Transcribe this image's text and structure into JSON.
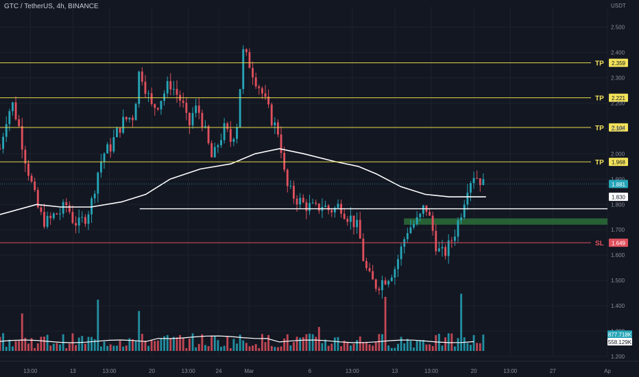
{
  "header": {
    "title": "GTC / TetherUS, 4h, BINANCE"
  },
  "axis": {
    "currency": "USDT"
  },
  "colors": {
    "background": "#131722",
    "up": "#26a5b7",
    "down": "#e0505d",
    "level_line": "#e6d94a",
    "sl_line": "#e0505d",
    "ma_line": "#ffffff",
    "support_line": "#ffffff",
    "zone": "#2f7a3c",
    "vol_up": "#26a5b7",
    "vol_down": "#e0505d",
    "axis_text": "#8b8f9a"
  },
  "chart_data": {
    "type": "candlestick",
    "title": "GTC / TetherUS, 4h, BINANCE",
    "ylabel": "USDT",
    "ylim": [
      1.2,
      2.58
    ],
    "y_ticks": [
      "2.500",
      "2.400",
      "2.300",
      "2.200",
      "2.100",
      "2.000",
      "1.900",
      "1.800",
      "1.700",
      "1.600",
      "1.500",
      "1.400",
      "1.300",
      "1.200"
    ],
    "x_ticks": [
      {
        "label": "13:00",
        "t": 0.05
      },
      {
        "label": "13",
        "t": 0.12
      },
      {
        "label": "13:00",
        "t": 0.18
      },
      {
        "label": "20",
        "t": 0.25
      },
      {
        "label": "13:00",
        "t": 0.31
      },
      {
        "label": "24",
        "t": 0.36
      },
      {
        "label": "Mar",
        "t": 0.41
      },
      {
        "label": "6",
        "t": 0.51
      },
      {
        "label": "13:00",
        "t": 0.58
      },
      {
        "label": "13",
        "t": 0.65
      },
      {
        "label": "13:00",
        "t": 0.71
      },
      {
        "label": "20",
        "t": 0.78
      },
      {
        "label": "13:00",
        "t": 0.84
      },
      {
        "label": "27",
        "t": 0.91
      },
      {
        "label": "Ap",
        "t": 1.0
      }
    ],
    "levels": [
      {
        "name": "TP",
        "value": 2.359,
        "label": "2.359",
        "kind": "tp"
      },
      {
        "name": "TP",
        "value": 2.221,
        "label": "2.221",
        "kind": "tp"
      },
      {
        "name": "TP",
        "value": 2.104,
        "label": "2.104",
        "kind": "tp"
      },
      {
        "name": "TP",
        "value": 1.968,
        "label": "1.968",
        "kind": "tp"
      },
      {
        "name": "SL",
        "value": 1.649,
        "label": "1.649",
        "kind": "sl"
      }
    ],
    "price_labels": [
      {
        "value": 1.881,
        "label": "1.881",
        "kind": "current"
      },
      {
        "value": 1.83,
        "label": "1.830",
        "kind": "ma"
      }
    ],
    "support_line": {
      "value": 1.783,
      "t_start": 0.23,
      "t_end": 1.0
    },
    "demand_zone": {
      "low": 1.72,
      "high": 1.745,
      "t_start": 0.665,
      "t_end": 1.0
    },
    "volume": {
      "labels": [
        "877.718K",
        "558.129K"
      ]
    },
    "series": [
      {
        "kind": "price",
        "points": [
          [
            0.0,
            2.02
          ],
          [
            0.01,
            2.14
          ],
          [
            0.02,
            2.2
          ],
          [
            0.03,
            2.12
          ],
          [
            0.04,
            2.0
          ],
          [
            0.05,
            1.9
          ],
          [
            0.06,
            1.8
          ],
          [
            0.07,
            1.74
          ],
          [
            0.08,
            1.73
          ],
          [
            0.09,
            1.76
          ],
          [
            0.1,
            1.77
          ],
          [
            0.11,
            1.8
          ],
          [
            0.12,
            1.74
          ],
          [
            0.13,
            1.72
          ],
          [
            0.14,
            1.75
          ],
          [
            0.15,
            1.8
          ],
          [
            0.16,
            1.92
          ],
          [
            0.17,
            2.0
          ],
          [
            0.18,
            2.02
          ],
          [
            0.19,
            2.07
          ],
          [
            0.2,
            2.12
          ],
          [
            0.21,
            2.14
          ],
          [
            0.22,
            2.15
          ],
          [
            0.23,
            2.34
          ],
          [
            0.24,
            2.26
          ],
          [
            0.25,
            2.18
          ],
          [
            0.26,
            2.2
          ],
          [
            0.27,
            2.24
          ],
          [
            0.28,
            2.28
          ],
          [
            0.29,
            2.24
          ],
          [
            0.3,
            2.2
          ],
          [
            0.31,
            2.1
          ],
          [
            0.32,
            2.18
          ],
          [
            0.33,
            2.16
          ],
          [
            0.34,
            2.06
          ],
          [
            0.35,
            1.97
          ],
          [
            0.36,
            2.05
          ],
          [
            0.37,
            2.1
          ],
          [
            0.38,
            2.05
          ],
          [
            0.39,
            2.12
          ],
          [
            0.4,
            2.4
          ],
          [
            0.41,
            2.36
          ],
          [
            0.42,
            2.3
          ],
          [
            0.43,
            2.25
          ],
          [
            0.44,
            2.18
          ],
          [
            0.45,
            2.12
          ],
          [
            0.46,
            2.08
          ],
          [
            0.47,
            1.88
          ],
          [
            0.48,
            1.84
          ],
          [
            0.49,
            1.82
          ],
          [
            0.5,
            1.8
          ],
          [
            0.51,
            1.79
          ],
          [
            0.52,
            1.78
          ],
          [
            0.53,
            1.8
          ],
          [
            0.54,
            1.78
          ],
          [
            0.55,
            1.78
          ],
          [
            0.56,
            1.8
          ],
          [
            0.57,
            1.76
          ],
          [
            0.58,
            1.74
          ],
          [
            0.59,
            1.7
          ],
          [
            0.6,
            1.56
          ],
          [
            0.61,
            1.5
          ],
          [
            0.62,
            1.48
          ],
          [
            0.63,
            1.5
          ],
          [
            0.64,
            1.52
          ],
          [
            0.65,
            1.55
          ],
          [
            0.66,
            1.62
          ],
          [
            0.67,
            1.7
          ],
          [
            0.68,
            1.72
          ],
          [
            0.69,
            1.74
          ],
          [
            0.7,
            1.8
          ],
          [
            0.71,
            1.72
          ],
          [
            0.72,
            1.62
          ],
          [
            0.73,
            1.6
          ],
          [
            0.74,
            1.64
          ],
          [
            0.75,
            1.7
          ],
          [
            0.76,
            1.78
          ],
          [
            0.77,
            1.88
          ],
          [
            0.78,
            1.92
          ],
          [
            0.79,
            1.9
          ],
          [
            0.8,
            1.86
          ]
        ]
      },
      {
        "kind": "moving_average",
        "points": [
          [
            0.0,
            1.76
          ],
          [
            0.06,
            1.8
          ],
          [
            0.1,
            1.79
          ],
          [
            0.15,
            1.79
          ],
          [
            0.2,
            1.81
          ],
          [
            0.24,
            1.84
          ],
          [
            0.28,
            1.9
          ],
          [
            0.33,
            1.94
          ],
          [
            0.38,
            1.96
          ],
          [
            0.42,
            2.0
          ],
          [
            0.46,
            2.02
          ],
          [
            0.5,
            2.0
          ],
          [
            0.55,
            1.97
          ],
          [
            0.59,
            1.95
          ],
          [
            0.62,
            1.92
          ],
          [
            0.66,
            1.87
          ],
          [
            0.7,
            1.84
          ],
          [
            0.74,
            1.83
          ],
          [
            0.78,
            1.83
          ],
          [
            0.8,
            1.83
          ]
        ]
      }
    ]
  }
}
